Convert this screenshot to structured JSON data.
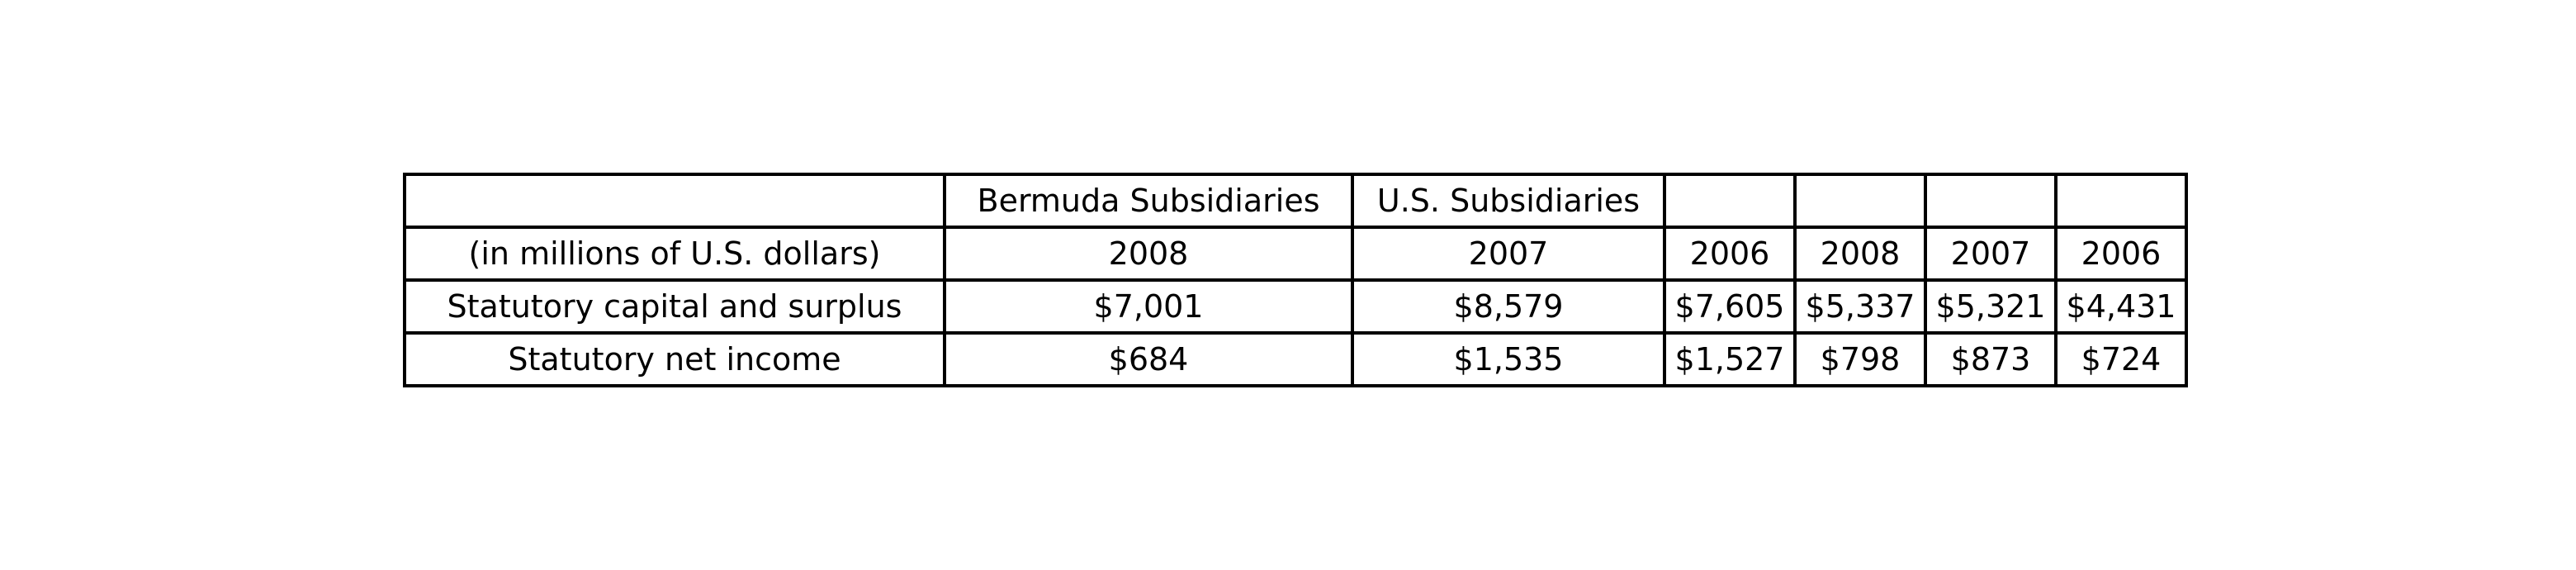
{
  "table": {
    "header_groups": [
      "",
      "Bermuda Subsidiaries",
      "U.S. Subsidiaries",
      "",
      "",
      "",
      ""
    ],
    "header_years": [
      "(in millions of U.S. dollars)",
      "2008",
      "2007",
      "2006",
      "2008",
      "2007",
      "2006"
    ],
    "rows": [
      {
        "label": "Statutory capital and surplus",
        "values": [
          "$7,001",
          "$8,579",
          "$7,605",
          "$5,337",
          "$5,321",
          "$4,431"
        ]
      },
      {
        "label": "Statutory net income",
        "values": [
          "$684",
          "$1,535",
          "$1,527",
          "$798",
          "$873",
          "$724"
        ]
      }
    ]
  }
}
